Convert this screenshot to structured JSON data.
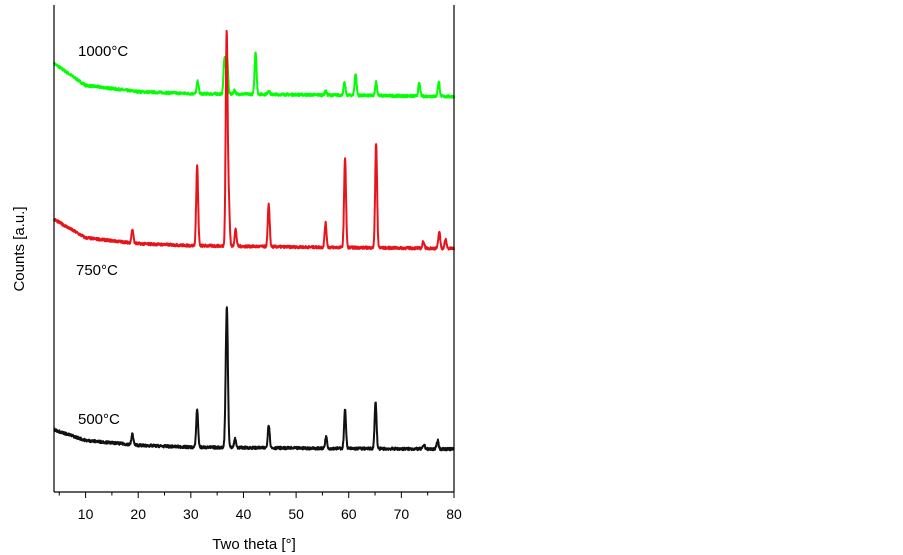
{
  "chart_data": {
    "type": "line",
    "title": "",
    "xlabel": "Two theta [°]",
    "ylabel": "Counts [a.u.]",
    "xlim": [
      4,
      80
    ],
    "ylim": [
      0,
      100
    ],
    "xticks": [
      10,
      20,
      30,
      40,
      50,
      60,
      70,
      80
    ],
    "yticks_shown": false,
    "grid": false,
    "legend": "none",
    "series": [
      {
        "name": "1000°C",
        "color": "#00ff00",
        "baseline": [
          [
            4,
            88.0
          ],
          [
            10,
            83.5
          ],
          [
            20,
            82.2
          ],
          [
            30,
            81.8
          ],
          [
            50,
            81.6
          ],
          [
            80,
            81.2
          ]
        ],
        "peaks": [
          [
            31.3,
            2.5
          ],
          [
            36.4,
            7.5
          ],
          [
            36.9,
            7.0
          ],
          [
            38.3,
            0.8
          ],
          [
            42.3,
            8.8
          ],
          [
            44.8,
            0.8
          ],
          [
            55.6,
            0.8
          ],
          [
            59.2,
            2.5
          ],
          [
            61.3,
            4.5
          ],
          [
            65.2,
            2.8
          ],
          [
            73.4,
            2.6
          ],
          [
            77.1,
            3.0
          ]
        ]
      },
      {
        "name": "750°C",
        "color": "#e8141b",
        "baseline": [
          [
            4,
            56.0
          ],
          [
            10,
            52.2
          ],
          [
            20,
            51.0
          ],
          [
            30,
            50.6
          ],
          [
            50,
            50.3
          ],
          [
            80,
            50.0
          ]
        ],
        "peaks": [
          [
            18.9,
            2.8
          ],
          [
            31.2,
            16.5
          ],
          [
            36.8,
            43.5
          ],
          [
            37.2,
            9.0
          ],
          [
            38.5,
            3.5
          ],
          [
            44.8,
            8.6
          ],
          [
            55.6,
            5.0
          ],
          [
            59.3,
            18.5
          ],
          [
            65.2,
            21.5
          ],
          [
            74.2,
            1.4
          ],
          [
            77.2,
            3.4
          ],
          [
            78.4,
            1.8
          ]
        ]
      },
      {
        "name": "500°C",
        "color": "#111111",
        "baseline": [
          [
            4,
            12.8
          ],
          [
            10,
            10.6
          ],
          [
            20,
            9.6
          ],
          [
            30,
            9.2
          ],
          [
            50,
            9.0
          ],
          [
            80,
            8.8
          ]
        ],
        "peaks": [
          [
            18.9,
            2.2
          ],
          [
            31.2,
            7.8
          ],
          [
            36.7,
            11.5
          ],
          [
            36.9,
            21.5
          ],
          [
            38.4,
            1.8
          ],
          [
            44.8,
            4.8
          ],
          [
            55.7,
            2.4
          ],
          [
            59.3,
            8.0
          ],
          [
            65.1,
            9.7
          ],
          [
            74.3,
            0.8
          ],
          [
            76.9,
            1.8
          ]
        ]
      }
    ]
  }
}
